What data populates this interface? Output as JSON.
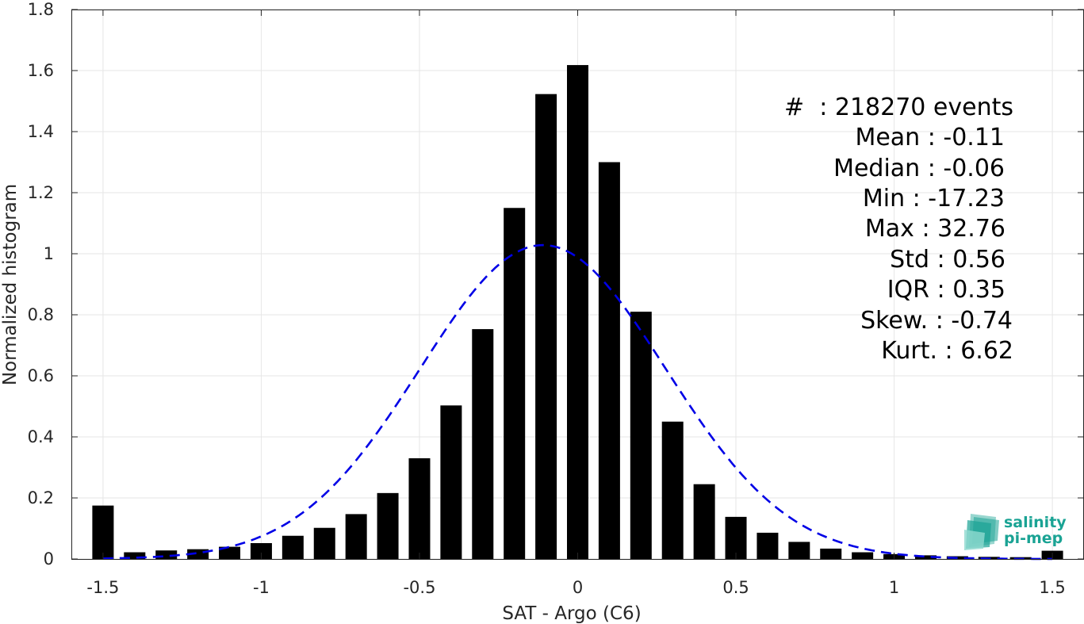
{
  "chart_data": {
    "type": "bar",
    "xlabel": "SAT - Argo (C6)",
    "ylabel": "Normalized histogram",
    "xlim": [
      -1.6,
      1.6
    ],
    "ylim": [
      0,
      1.8
    ],
    "xticks": [
      -1.5,
      -1,
      -0.5,
      0,
      0.5,
      1,
      1.5
    ],
    "xtick_labels": [
      "-1.5",
      "-1",
      "-0.5",
      "0",
      "0.5",
      "1",
      "1.5"
    ],
    "yticks": [
      0,
      0.2,
      0.4,
      0.6,
      0.8,
      1,
      1.2,
      1.4,
      1.6,
      1.8
    ],
    "ytick_labels": [
      "0",
      "0.2",
      "0.4",
      "0.6",
      "0.8",
      "1",
      "1.2",
      "1.4",
      "1.6",
      "1.8"
    ],
    "grid": true,
    "bar_color": "#000000",
    "fit_color": "#0000e6",
    "x": [
      -1.5,
      -1.4,
      -1.3,
      -1.2,
      -1.1,
      -1.0,
      -0.9,
      -0.8,
      -0.7,
      -0.6,
      -0.5,
      -0.4,
      -0.3,
      -0.2,
      -0.1,
      0.0,
      0.1,
      0.2,
      0.3,
      0.4,
      0.5,
      0.6,
      0.7,
      0.8,
      0.9,
      1.0,
      1.1,
      1.2,
      1.3,
      1.4,
      1.5
    ],
    "values": [
      0.175,
      0.022,
      0.028,
      0.032,
      0.04,
      0.052,
      0.076,
      0.102,
      0.147,
      0.216,
      0.33,
      0.503,
      0.753,
      1.15,
      1.523,
      1.618,
      1.3,
      0.81,
      0.45,
      0.245,
      0.138,
      0.086,
      0.056,
      0.034,
      0.022,
      0.016,
      0.012,
      0.009,
      0.007,
      0.006,
      0.027
    ],
    "fit": {
      "type": "normal",
      "mean": -0.11,
      "std": 0.388,
      "style": "dashed"
    }
  },
  "stats": [
    {
      "label": "#  : 218270 events"
    },
    {
      "label": "Mean : -0.11"
    },
    {
      "label": "Median : -0.06"
    },
    {
      "label": "Min : -17.23"
    },
    {
      "label": "Max : 32.76"
    },
    {
      "label": "Std : 0.56"
    },
    {
      "label": "IQR : 0.35"
    },
    {
      "label": "Skew. : -0.74"
    },
    {
      "label": "Kurt. : 6.62"
    }
  ],
  "logo": {
    "line1": "salinity",
    "line2": "pi-mep",
    "color": "#1aa394"
  }
}
